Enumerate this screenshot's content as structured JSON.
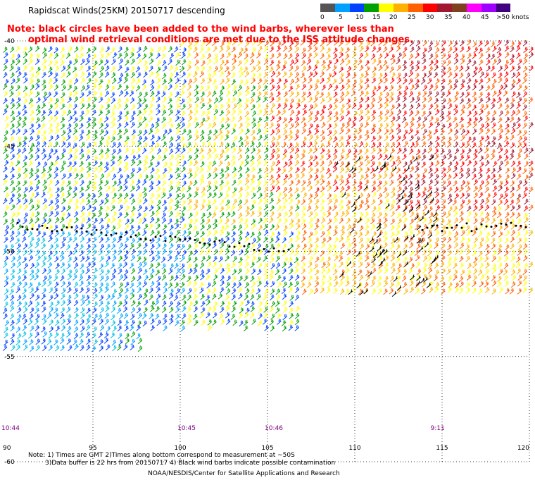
{
  "title": "Rapidscat Winds(25KM) 20150717 descending",
  "note": {
    "line1": "Note: black circles have been added to the wind barbs, wherever less than",
    "line2": "optimal wind retrieval conditions are met due to the ISS attitude changes."
  },
  "colorbar": {
    "colors": [
      "#555555",
      "#00a0ff",
      "#0040ff",
      "#00a000",
      "#ffff00",
      "#ffb000",
      "#ff6000",
      "#ff0000",
      "#a01830",
      "#804020",
      "#ff00ff",
      "#a000ff",
      "#400080"
    ],
    "labels": [
      "0",
      "5",
      "10",
      "15",
      "20",
      "25",
      "30",
      "35",
      "40",
      "45",
      ">50 knots"
    ]
  },
  "map": {
    "lat_labels": [
      "-40",
      "-45",
      "-50",
      "-55",
      "-60"
    ],
    "lon_labels": [
      "90",
      "95",
      "100",
      "105",
      "110",
      "115",
      "120"
    ],
    "time_labels": [
      {
        "text": "10:44",
        "lon": 90
      },
      {
        "text": "10:45",
        "lon": 100
      },
      {
        "text": "10:46",
        "lon": 105
      },
      {
        "text": "9:11",
        "lon": 114.5
      }
    ],
    "lon_range": [
      90,
      120
    ],
    "lat_range": [
      -60,
      -40
    ]
  },
  "footer": {
    "line1": "Note: 1) Times are GMT 2)Times along bottom correspond to measurement at ~50S",
    "line2": "3)Data buffer is 22 hrs from 20150717 4) Black wind barbs indicate possible contamination",
    "line3": "NOAA/NESDIS/Center for Satellite Applications and Research"
  }
}
